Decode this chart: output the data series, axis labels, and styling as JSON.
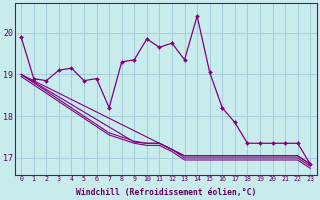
{
  "xlabel": "Windchill (Refroidissement éolien,°C)",
  "background_color": "#c8ecec",
  "line_color": "#800080",
  "grid_color": "#a0c8d8",
  "hours": [
    0,
    1,
    2,
    3,
    4,
    5,
    6,
    7,
    8,
    9,
    10,
    11,
    12,
    13,
    14,
    15,
    16,
    17,
    18,
    19,
    20,
    21,
    22,
    23
  ],
  "main_series": [
    19.9,
    18.9,
    18.85,
    19.1,
    19.15,
    18.85,
    18.9,
    18.2,
    19.3,
    19.35,
    19.85,
    19.65,
    19.75,
    19.35,
    20.4,
    19.05,
    18.2,
    17.85,
    17.35,
    17.35,
    17.35,
    17.35,
    17.35,
    16.85
  ],
  "trend_lines": [
    [
      19.0,
      18.85,
      18.7,
      18.55,
      18.4,
      18.25,
      18.1,
      17.95,
      17.8,
      17.65,
      17.5,
      17.35,
      17.2,
      17.05,
      17.05,
      17.05,
      17.05,
      17.05,
      17.05,
      17.05,
      17.05,
      17.05,
      17.05,
      16.85
    ],
    [
      19.0,
      18.82,
      18.64,
      18.46,
      18.28,
      18.1,
      17.92,
      17.74,
      17.56,
      17.38,
      17.35,
      17.35,
      17.2,
      17.05,
      17.05,
      17.05,
      17.05,
      17.05,
      17.05,
      17.05,
      17.05,
      17.05,
      17.05,
      16.85
    ],
    [
      19.0,
      18.8,
      18.6,
      18.4,
      18.2,
      18.0,
      17.8,
      17.6,
      17.5,
      17.4,
      17.35,
      17.35,
      17.2,
      17.0,
      17.0,
      17.0,
      17.0,
      17.0,
      17.0,
      17.0,
      17.0,
      17.0,
      17.0,
      16.8
    ],
    [
      18.95,
      18.75,
      18.55,
      18.35,
      18.15,
      17.95,
      17.75,
      17.55,
      17.45,
      17.35,
      17.3,
      17.3,
      17.15,
      16.95,
      16.95,
      16.95,
      16.95,
      16.95,
      16.95,
      16.95,
      16.95,
      16.95,
      16.95,
      16.75
    ]
  ],
  "ylim": [
    16.6,
    20.7
  ],
  "yticks": [
    17,
    18,
    19,
    20
  ],
  "xticks": [
    0,
    1,
    2,
    3,
    4,
    5,
    6,
    7,
    8,
    9,
    10,
    11,
    12,
    13,
    14,
    15,
    16,
    17,
    18,
    19,
    20,
    21,
    22,
    23
  ]
}
